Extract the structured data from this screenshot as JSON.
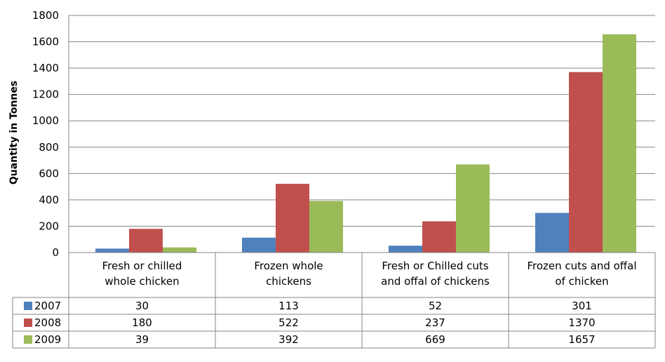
{
  "chart_data": {
    "type": "bar",
    "title": "",
    "xlabel": "",
    "ylabel": "Quantity in Tonnes",
    "ylim": [
      0,
      1800
    ],
    "yticks": [
      0,
      200,
      400,
      600,
      800,
      1000,
      1200,
      1400,
      1600,
      1800
    ],
    "grid": true,
    "legend": "data-table",
    "categories": [
      [
        "Fresh or chilled",
        "whole chicken"
      ],
      [
        "Frozen whole",
        "chickens"
      ],
      [
        "Fresh or Chilled cuts",
        "and offal of chickens"
      ],
      [
        "Frozen cuts and offal",
        "of chicken"
      ]
    ],
    "series": [
      {
        "name": "2007",
        "color": "#4F81BD",
        "values": [
          30,
          113,
          52,
          301
        ]
      },
      {
        "name": "2008",
        "color": "#C0504D",
        "values": [
          180,
          522,
          237,
          1370
        ]
      },
      {
        "name": "2009",
        "color": "#9BBB59",
        "values": [
          39,
          392,
          669,
          1657
        ]
      }
    ]
  }
}
